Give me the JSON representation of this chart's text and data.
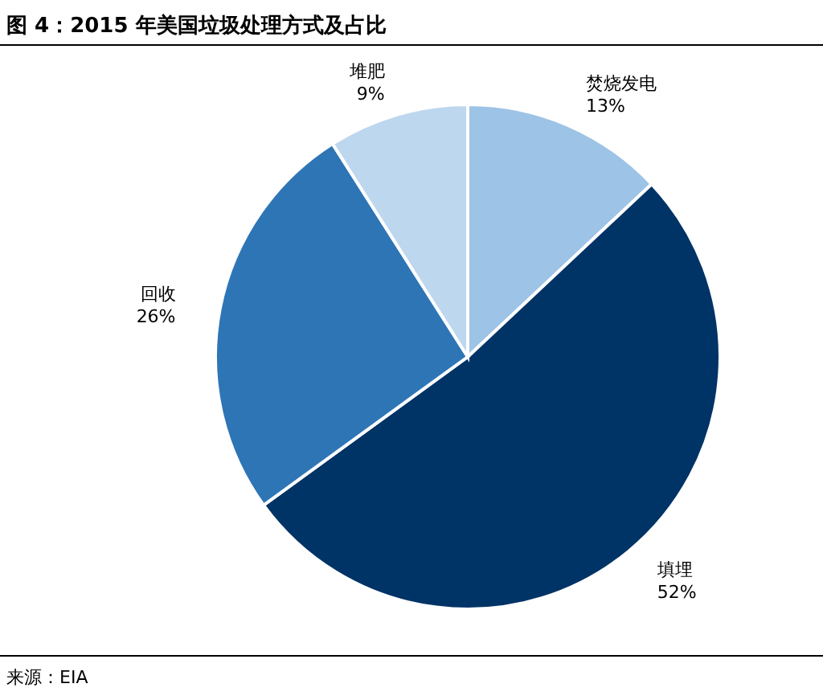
{
  "chart_data": {
    "type": "pie",
    "title": "图 4：2015 年美国垃圾处理方式及占比",
    "categories": [
      "焚烧发电",
      "填埋",
      "回收",
      "堆肥"
    ],
    "values": [
      13,
      52,
      26,
      9
    ],
    "value_labels": [
      "13%",
      "52%",
      "26%",
      "9%"
    ],
    "colors": [
      "#9dc3e6",
      "#003366",
      "#2e75b6",
      "#bdd7ee"
    ],
    "annotations": [
      "来源：EIA"
    ]
  }
}
